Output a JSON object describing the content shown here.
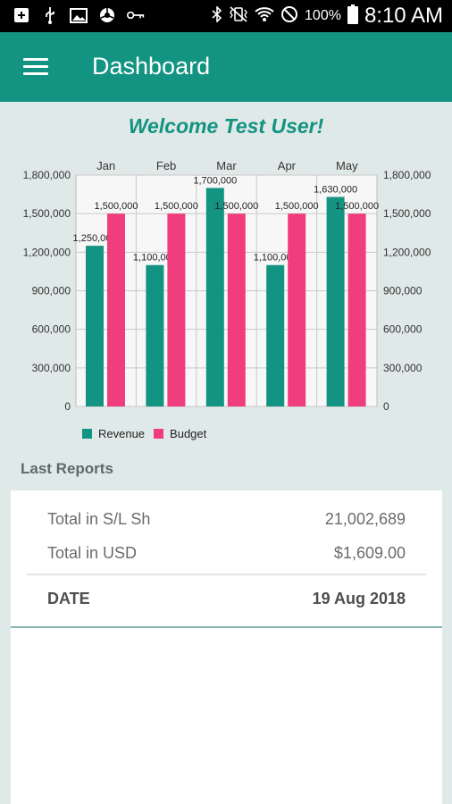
{
  "status_bar": {
    "battery_percent": "100%",
    "time": "8:10 AM",
    "icons": [
      "add-box-icon",
      "usb-icon",
      "image-icon",
      "steering-icon",
      "key-icon",
      "bluetooth-icon",
      "vibrate-icon",
      "wifi-icon",
      "do-not-disturb-icon",
      "battery-icon"
    ]
  },
  "app_bar": {
    "title": "Dashboard"
  },
  "welcome": "Welcome Test User!",
  "chart_data": {
    "type": "bar",
    "categories": [
      "Jan",
      "Feb",
      "Mar",
      "Apr",
      "May"
    ],
    "series": [
      {
        "name": "Revenue",
        "color": "#139381",
        "values": [
          1250000,
          1100000,
          1700000,
          1100000,
          1630000
        ]
      },
      {
        "name": "Budget",
        "color": "#f03d7e",
        "values": [
          1500000,
          1500000,
          1500000,
          1500000,
          1500000
        ]
      }
    ],
    "data_labels": {
      "Revenue": [
        "1,250,000",
        "1,100,000",
        "1,700,000",
        "1,100,000",
        "1,630,000"
      ],
      "Budget": [
        "1,500,000",
        "1,500,000",
        "1,500,000",
        "1,500,000",
        "1,500,000"
      ]
    },
    "y_ticks": [
      0,
      300000,
      600000,
      900000,
      1200000,
      1500000,
      1800000
    ],
    "y_tick_labels": [
      "0",
      "300,000",
      "600,000",
      "900,000",
      "1,200,000",
      "1,500,000",
      "1,800,000"
    ],
    "ylim": [
      0,
      1800000
    ],
    "grid": true,
    "legend_position": "bottom-left",
    "x_axis_position": "top",
    "y_axis": "both sides"
  },
  "last_reports": {
    "label": "Last Reports",
    "rows": [
      {
        "label": "Total in S/L Sh",
        "value": "21,002,689"
      },
      {
        "label": "Total in USD",
        "value": "$1,609.00"
      }
    ],
    "date_label": "DATE",
    "date_value": "19 Aug 2018"
  }
}
